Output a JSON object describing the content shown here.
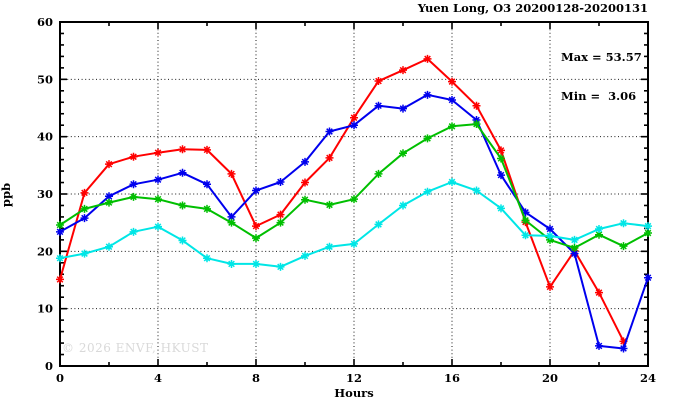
{
  "title": "Yuen Long, O3 20200128-20200131",
  "stats": {
    "max_label": "Max = 53.57",
    "min_label": "Min =  3.06"
  },
  "watermark": "© 2026 ENVF, HKUST",
  "chart_data": {
    "type": "line",
    "title": "Yuen Long, O3 20200128-20200131",
    "xlabel": "Hours",
    "ylabel": "ppb",
    "xlim": [
      0,
      24
    ],
    "ylim": [
      0,
      60
    ],
    "xticks_major": [
      0,
      4,
      8,
      12,
      16,
      20,
      24
    ],
    "xtick_minor_step": 2,
    "yticks_major": [
      0,
      10,
      20,
      30,
      40,
      50,
      60
    ],
    "ytick_minor_step": 2,
    "grid_x": [
      4,
      8,
      12,
      16,
      20
    ],
    "grid_y": [
      10,
      20,
      30,
      40,
      50
    ],
    "legend": "none",
    "max": 53.57,
    "min": 3.06,
    "x": [
      0,
      1,
      2,
      3,
      4,
      5,
      6,
      7,
      8,
      9,
      10,
      11,
      12,
      13,
      14,
      15,
      16,
      17,
      18,
      19,
      20,
      21,
      22,
      23,
      24
    ],
    "series": [
      {
        "name": "series-red",
        "color": "#ff0000",
        "values": [
          15.1,
          30.2,
          35.2,
          36.5,
          37.2,
          37.8,
          37.7,
          33.5,
          24.4,
          26.4,
          32.0,
          36.3,
          43.3,
          49.7,
          51.6,
          53.57,
          49.6,
          45.4,
          37.6,
          25.1,
          13.8,
          20.1,
          12.8,
          4.3,
          null
        ]
      },
      {
        "name": "series-blue",
        "color": "#0000ee",
        "values": [
          23.4,
          25.8,
          29.6,
          31.7,
          32.5,
          33.7,
          31.7,
          26.0,
          30.6,
          32.1,
          35.6,
          40.9,
          42.0,
          45.4,
          44.9,
          47.3,
          46.4,
          42.9,
          33.3,
          26.8,
          23.9,
          19.6,
          3.5,
          3.06,
          15.4
        ]
      },
      {
        "name": "series-green",
        "color": "#00bf00",
        "values": [
          24.6,
          27.4,
          28.5,
          29.5,
          29.1,
          28.0,
          27.4,
          25.0,
          22.3,
          25.0,
          29.0,
          28.1,
          29.1,
          33.5,
          37.1,
          39.7,
          41.8,
          42.2,
          36.2,
          25.4,
          22.0,
          20.6,
          22.9,
          20.9,
          23.2
        ]
      },
      {
        "name": "series-cyan",
        "color": "#00e6e6",
        "values": [
          18.8,
          19.6,
          20.8,
          23.4,
          24.3,
          21.9,
          18.8,
          17.8,
          17.8,
          17.3,
          19.2,
          20.8,
          21.3,
          24.7,
          28.0,
          30.4,
          32.1,
          30.6,
          27.5,
          22.8,
          22.7,
          22.0,
          23.9,
          24.9,
          24.4
        ]
      }
    ]
  }
}
